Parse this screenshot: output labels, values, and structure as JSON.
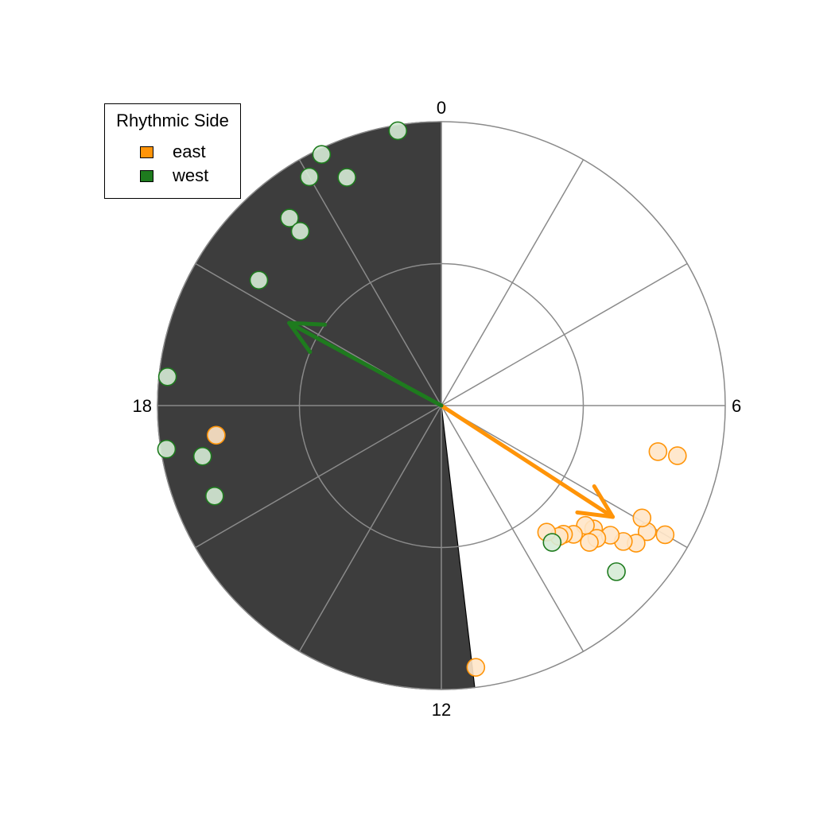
{
  "legend": {
    "title": "Rhythmic Side",
    "items": [
      {
        "label": "east",
        "color": "#FF9408"
      },
      {
        "label": "west",
        "color": "#1E7B1E"
      }
    ]
  },
  "chart_data": {
    "type": "scatter",
    "coordinate_system": "polar-clock",
    "angular_axis": {
      "range": [
        0,
        24
      ],
      "direction": "clockwise",
      "zero": "top",
      "tick_labels": [
        "0",
        "6",
        "12",
        "18"
      ],
      "spokes_every": 2
    },
    "radial_axis": {
      "range": [
        0,
        1
      ],
      "rings": [
        0.5,
        1.0
      ],
      "tick_labels": []
    },
    "shaded_sector": {
      "from": 11.55,
      "to": 24,
      "color": "#3D3D3D"
    },
    "legend_position": "top-left",
    "grid": true,
    "series": [
      {
        "name": "east",
        "color": "#FF9408",
        "fill": "#FFE6C8",
        "points": [
          {
            "t": 6.8,
            "r": 0.85
          },
          {
            "t": 6.8,
            "r": 0.78
          },
          {
            "t": 8.0,
            "r": 0.91
          },
          {
            "t": 8.1,
            "r": 0.85
          },
          {
            "t": 7.95,
            "r": 0.81
          },
          {
            "t": 8.35,
            "r": 0.84
          },
          {
            "t": 8.45,
            "r": 0.8
          },
          {
            "t": 8.5,
            "r": 0.75
          },
          {
            "t": 8.6,
            "r": 0.69
          },
          {
            "t": 8.65,
            "r": 0.66
          },
          {
            "t": 8.7,
            "r": 0.72
          },
          {
            "t": 8.85,
            "r": 0.71
          },
          {
            "t": 8.95,
            "r": 0.65
          },
          {
            "t": 9.1,
            "r": 0.625
          },
          {
            "t": 9.2,
            "r": 0.62
          },
          {
            "t": 9.35,
            "r": 0.58
          },
          {
            "t": 11.5,
            "r": 0.93
          },
          {
            "t": 17.5,
            "r": 0.8
          }
        ],
        "mean_vector": {
          "t": 8.2,
          "r": 0.72
        }
      },
      {
        "name": "west",
        "color": "#1E7B1E",
        "fill": "#D6EBD6",
        "points": [
          {
            "t": 23.4,
            "r": 0.98
          },
          {
            "t": 22.3,
            "r": 0.98
          },
          {
            "t": 22.0,
            "r": 0.93
          },
          {
            "t": 22.5,
            "r": 0.87
          },
          {
            "t": 21.4,
            "r": 0.85
          },
          {
            "t": 21.4,
            "r": 0.79
          },
          {
            "t": 20.3,
            "r": 0.78
          },
          {
            "t": 18.4,
            "r": 0.97
          },
          {
            "t": 17.4,
            "r": 0.98
          },
          {
            "t": 17.2,
            "r": 0.86
          },
          {
            "t": 16.55,
            "r": 0.86
          },
          {
            "t": 8.9,
            "r": 0.85
          },
          {
            "t": 9.4,
            "r": 0.62
          }
        ],
        "mean_vector": {
          "t": 19.9,
          "r": 0.61
        }
      }
    ]
  }
}
